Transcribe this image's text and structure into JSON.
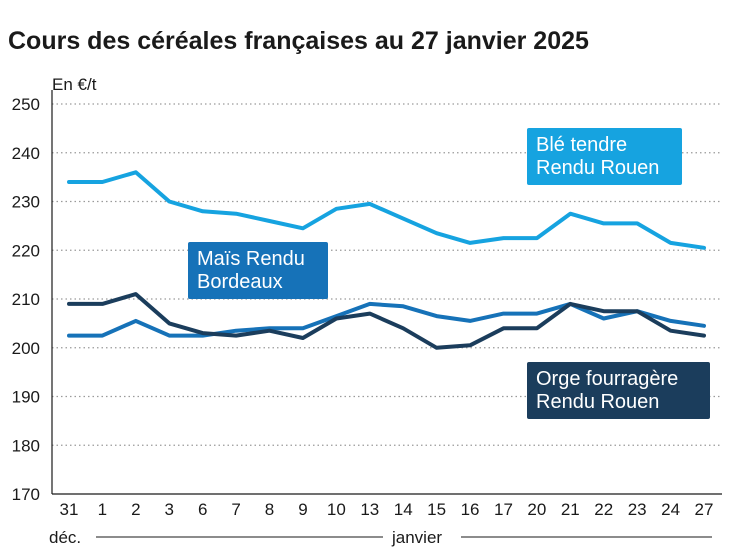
{
  "chart_data": {
    "type": "line",
    "title": "Cours des céréales françaises au 27 janvier 2025",
    "ylabel": "En €/t",
    "ylim": [
      170,
      250
    ],
    "yticks": [
      170,
      180,
      190,
      200,
      210,
      220,
      230,
      240,
      250
    ],
    "categories": [
      "31",
      "1",
      "2",
      "3",
      "6",
      "7",
      "8",
      "9",
      "10",
      "13",
      "14",
      "15",
      "16",
      "17",
      "20",
      "21",
      "22",
      "23",
      "24",
      "27"
    ],
    "periods": [
      {
        "label": "déc."
      },
      {
        "label": "janvier"
      }
    ],
    "grid": true,
    "series": [
      {
        "name": "Blé tendre Rendu Rouen",
        "label_lines": [
          "Blé tendre",
          "Rendu Rouen"
        ],
        "color": "#16a3e0",
        "values": [
          234,
          234,
          236,
          230,
          228,
          227.5,
          226,
          224.5,
          228.5,
          229.5,
          226.5,
          223.5,
          221.5,
          222.5,
          222.5,
          227.5,
          225.5,
          225.5,
          221.5,
          220.5
        ]
      },
      {
        "name": "Maïs Rendu Bordeaux",
        "label_lines": [
          "Maïs Rendu",
          "Bordeaux"
        ],
        "color": "#1672b8",
        "values": [
          202.5,
          202.5,
          205.5,
          202.5,
          202.5,
          203.5,
          204,
          204,
          206.5,
          209,
          208.5,
          206.5,
          205.5,
          207,
          207,
          209,
          206,
          207.5,
          205.5,
          204.5
        ]
      },
      {
        "name": "Orge fourragère Rendu Rouen",
        "label_lines": [
          "Orge fourragère",
          "Rendu Rouen"
        ],
        "color": "#1b3d5c",
        "values": [
          209,
          209,
          211,
          205,
          203,
          202.5,
          203.5,
          202,
          206,
          207,
          204,
          200,
          200.5,
          204,
          204,
          209,
          207.5,
          207.5,
          203.5,
          202.5
        ]
      }
    ]
  }
}
